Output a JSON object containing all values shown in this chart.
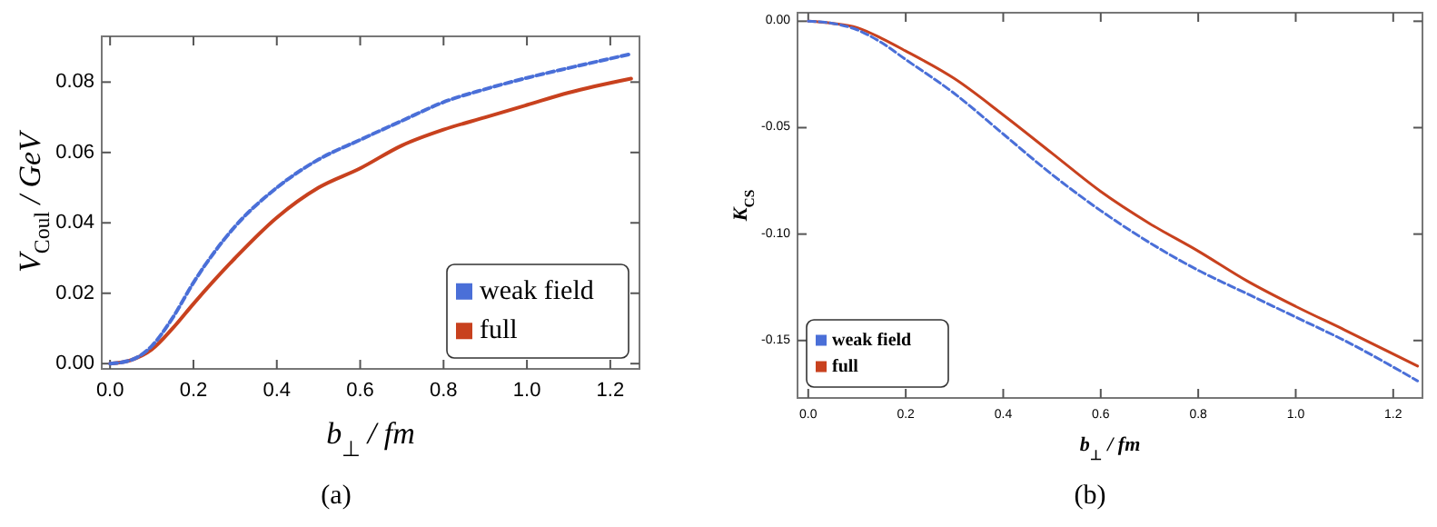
{
  "chart_data": [
    {
      "type": "line",
      "xlabel": "b$_{⊥}$ / fm",
      "ylabel": "V$_{Coul}$ / GeV",
      "annotations": [
        "(a)"
      ],
      "xlim": [
        -0.02,
        1.27
      ],
      "ylim": [
        -0.0015,
        0.093
      ],
      "xticks": [
        {
          "value": 0,
          "label": "0.0"
        },
        {
          "value": 0.2,
          "label": "0.2"
        },
        {
          "value": 0.4,
          "label": "0.4"
        },
        {
          "value": 0.6,
          "label": "0.6"
        },
        {
          "value": 0.8,
          "label": "0.8"
        },
        {
          "value": 1,
          "label": "1.0"
        },
        {
          "value": 1.2,
          "label": "1.2"
        }
      ],
      "yticks": [
        {
          "value": 0,
          "label": "0.00"
        },
        {
          "value": 0.02,
          "label": "0.02"
        },
        {
          "value": 0.04,
          "label": "0.04"
        },
        {
          "value": 0.06,
          "label": "0.06"
        },
        {
          "value": 0.08,
          "label": "0.08"
        }
      ],
      "grid": false,
      "legend": "bottom right",
      "x": [
        0,
        0.05,
        0.1,
        0.15,
        0.2,
        0.3,
        0.4,
        0.5,
        0.6,
        0.7,
        0.8,
        0.9,
        1.0,
        1.1,
        1.25
      ],
      "series": [
        {
          "name": "weak field",
          "color": "#4a6fd8",
          "line_style": "dashed",
          "values": [
            0,
            0.001,
            0.005,
            0.013,
            0.023,
            0.039,
            0.05,
            0.058,
            0.0636,
            0.069,
            0.0743,
            0.078,
            0.0812,
            0.084,
            0.088
          ]
        },
        {
          "name": "full",
          "color": "#c8411e",
          "line_style": "solid",
          "values": [
            0,
            0.001,
            0.004,
            0.01,
            0.017,
            0.03,
            0.0415,
            0.05,
            0.0555,
            0.062,
            0.0665,
            0.07,
            0.0735,
            0.077,
            0.081
          ]
        }
      ]
    },
    {
      "type": "line",
      "xlabel": "b$_{⊥}$ / fm",
      "ylabel": "K$_{CS}$",
      "annotations": [
        "(b)"
      ],
      "xlim": [
        -0.022,
        1.26
      ],
      "ylim": [
        -0.177,
        0.004
      ],
      "xticks": [
        {
          "value": 0,
          "label": "0.0"
        },
        {
          "value": 0.2,
          "label": "0.2"
        },
        {
          "value": 0.4,
          "label": "0.4"
        },
        {
          "value": 0.6,
          "label": "0.6"
        },
        {
          "value": 0.8,
          "label": "0.8"
        },
        {
          "value": 1,
          "label": "1.0"
        },
        {
          "value": 1.2,
          "label": "1.2"
        }
      ],
      "yticks": [
        {
          "value": 0,
          "label": "0.00"
        },
        -0.05,
        {
          "value": -0.1,
          "label": "-0.10"
        },
        -0.15
      ],
      "grid": false,
      "legend": "bottom left",
      "x": [
        0,
        0.05,
        0.1,
        0.15,
        0.2,
        0.3,
        0.4,
        0.5,
        0.6,
        0.7,
        0.8,
        0.9,
        1.0,
        1.1,
        1.25
      ],
      "series": [
        {
          "name": "weak field",
          "color": "#4a6fd8",
          "line_style": "dashed",
          "values": [
            0,
            -0.001,
            -0.004,
            -0.01,
            -0.018,
            -0.034,
            -0.053,
            -0.072,
            -0.089,
            -0.104,
            -0.117,
            -0.128,
            -0.139,
            -0.15,
            -0.169
          ]
        },
        {
          "name": "full",
          "color": "#c8411e",
          "line_style": "solid",
          "values": [
            0,
            -0.001,
            -0.003,
            -0.008,
            -0.014,
            -0.027,
            -0.044,
            -0.062,
            -0.08,
            -0.095,
            -0.108,
            -0.122,
            -0.134,
            -0.145,
            -0.162
          ]
        }
      ]
    }
  ]
}
